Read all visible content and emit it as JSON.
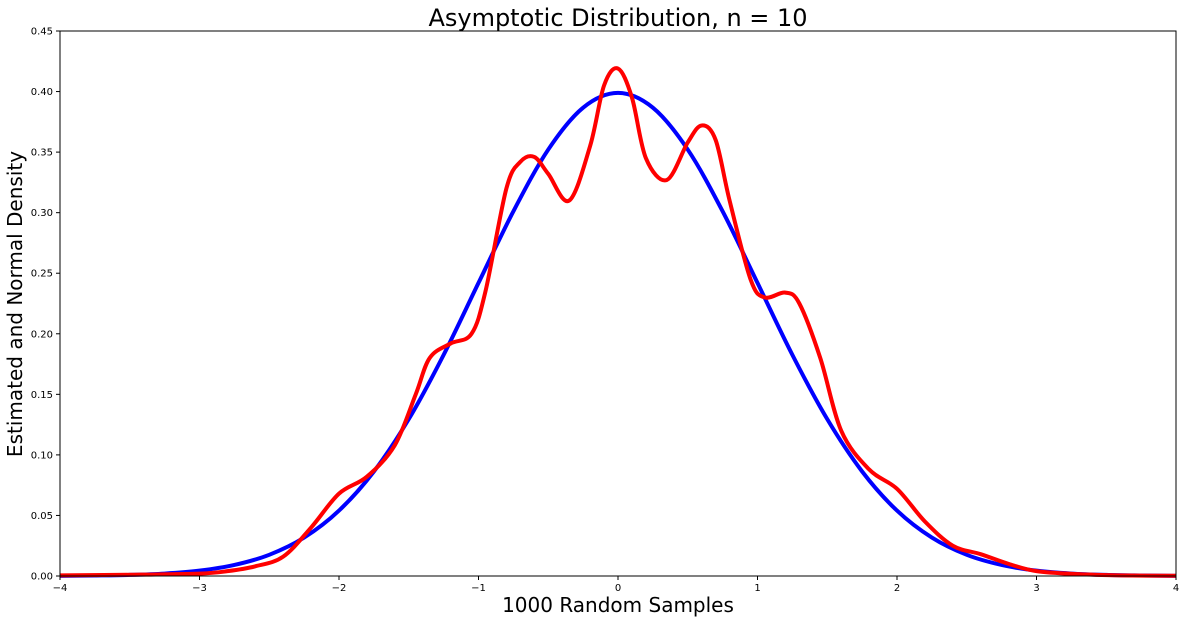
{
  "chart_data": {
    "type": "line",
    "title": "Asymptotic Distribution, n = 10",
    "xlabel": "1000 Random Samples",
    "ylabel": "Estimated and Normal Density",
    "xlim": [
      -4,
      4
    ],
    "ylim": [
      0,
      0.45
    ],
    "grid": false,
    "xticks": [
      -4,
      -3,
      -2,
      -1,
      0,
      1,
      2,
      3,
      4
    ],
    "xtick_labels": [
      "−4",
      "−3",
      "−2",
      "−1",
      "0",
      "1",
      "2",
      "3",
      "4"
    ],
    "yticks": [
      0,
      0.05,
      0.1,
      0.15,
      0.2,
      0.25,
      0.3,
      0.35,
      0.4,
      0.45
    ],
    "ytick_labels": [
      "0.00",
      "0.05",
      "0.10",
      "0.15",
      "0.20",
      "0.25",
      "0.30",
      "0.35",
      "0.40",
      "0.45"
    ],
    "series": [
      {
        "color": "#0000ff",
        "x": [
          -4.0,
          -3.75,
          -3.5,
          -3.25,
          -3.0,
          -2.75,
          -2.5,
          -2.25,
          -2.0,
          -1.75,
          -1.5,
          -1.25,
          -1.0,
          -0.75,
          -0.5,
          -0.25,
          0.0,
          0.25,
          0.5,
          0.75,
          1.0,
          1.25,
          1.5,
          1.75,
          2.0,
          2.25,
          2.5,
          2.75,
          3.0,
          3.25,
          3.5,
          3.75,
          4.0
        ],
        "y": [
          0.0001,
          0.0004,
          0.0009,
          0.002,
          0.0044,
          0.0091,
          0.0175,
          0.0317,
          0.054,
          0.0863,
          0.1295,
          0.1826,
          0.242,
          0.3011,
          0.3521,
          0.3867,
          0.3989,
          0.3867,
          0.3521,
          0.3011,
          0.242,
          0.1826,
          0.1295,
          0.0863,
          0.054,
          0.0317,
          0.0175,
          0.0091,
          0.0044,
          0.002,
          0.0009,
          0.0004,
          0.0001
        ]
      },
      {
        "color": "#ff0000",
        "x": [
          -4.0,
          -3.5,
          -3.0,
          -2.8,
          -2.6,
          -2.4,
          -2.2,
          -2.0,
          -1.8,
          -1.6,
          -1.45,
          -1.35,
          -1.2,
          -1.05,
          -0.95,
          -0.8,
          -0.7,
          -0.6,
          -0.5,
          -0.35,
          -0.2,
          -0.1,
          0.0,
          0.1,
          0.2,
          0.35,
          0.5,
          0.6,
          0.7,
          0.8,
          0.95,
          1.05,
          1.2,
          1.3,
          1.45,
          1.6,
          1.8,
          2.0,
          2.2,
          2.4,
          2.6,
          2.8,
          3.0,
          3.3,
          3.6,
          4.0
        ],
        "y": [
          0.0005,
          0.001,
          0.002,
          0.004,
          0.008,
          0.016,
          0.04,
          0.068,
          0.082,
          0.108,
          0.15,
          0.18,
          0.192,
          0.2,
          0.235,
          0.32,
          0.342,
          0.346,
          0.332,
          0.31,
          0.355,
          0.405,
          0.419,
          0.395,
          0.345,
          0.327,
          0.358,
          0.372,
          0.36,
          0.31,
          0.245,
          0.23,
          0.234,
          0.225,
          0.18,
          0.12,
          0.088,
          0.072,
          0.045,
          0.025,
          0.018,
          0.01,
          0.004,
          0.0015,
          0.0005,
          0.0002
        ]
      }
    ]
  }
}
